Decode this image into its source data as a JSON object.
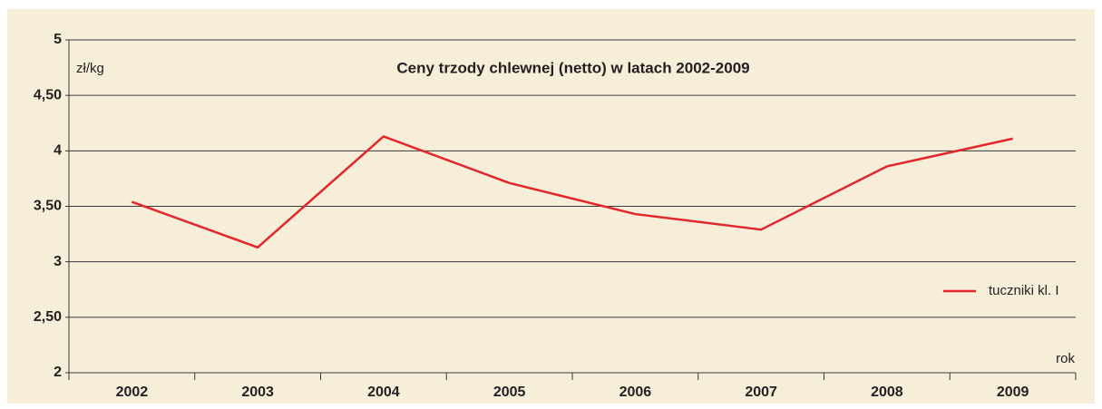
{
  "chart_data": {
    "type": "line",
    "title": "Ceny trzody chlewnej (netto) w latach 2002-2009",
    "y_label": "zł/kg",
    "x_label": "rok",
    "categories": [
      "2002",
      "2003",
      "2004",
      "2005",
      "2006",
      "2007",
      "2008",
      "2009"
    ],
    "series": [
      {
        "name": "tuczniki kl. I",
        "color": "#e3262b",
        "values": [
          3.54,
          3.13,
          4.13,
          3.71,
          3.43,
          3.29,
          3.86,
          4.11
        ]
      }
    ],
    "ylim": [
      2,
      5
    ],
    "yticks": [
      2,
      {
        "value": 2.5,
        "label": "2,50"
      },
      3,
      {
        "value": 3.5,
        "label": "3,50"
      },
      4,
      {
        "value": 4.5,
        "label": "4,50"
      },
      5
    ],
    "grid": true,
    "legend": "right"
  }
}
